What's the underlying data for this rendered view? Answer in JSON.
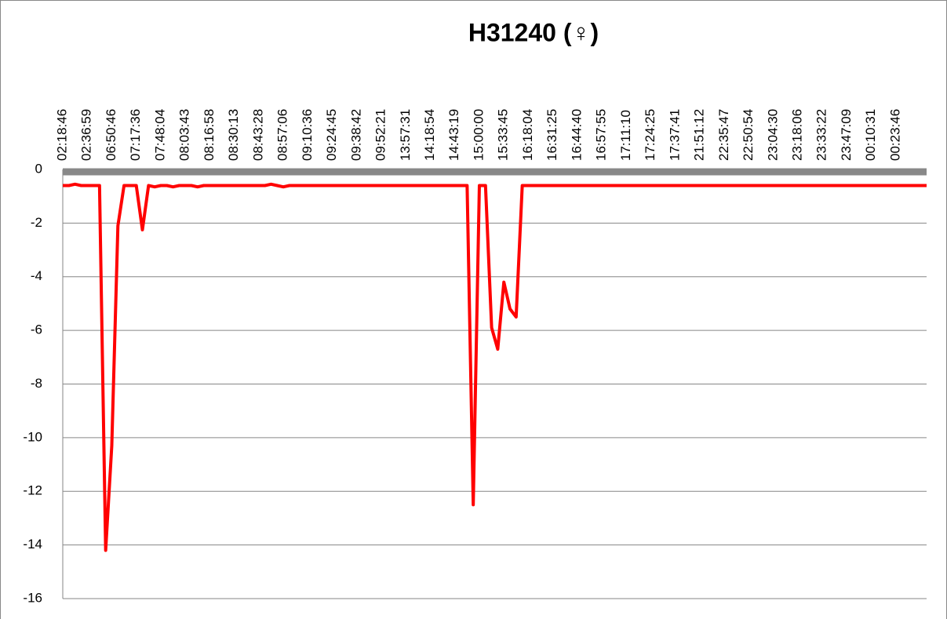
{
  "chart_data": {
    "type": "line",
    "title": "H31240 (♀)",
    "categories": [
      "02:18:46",
      null,
      null,
      null,
      "02:36:59",
      null,
      null,
      null,
      "06:50:46",
      null,
      null,
      null,
      "07:17:36",
      null,
      null,
      null,
      "07:48:04",
      null,
      null,
      null,
      "08:03:43",
      null,
      null,
      null,
      "08:16:58",
      null,
      null,
      null,
      "08:30:13",
      null,
      null,
      null,
      "08:43:28",
      null,
      null,
      null,
      "08:57:06",
      null,
      null,
      null,
      "09:10:36",
      null,
      null,
      null,
      "09:24:45",
      null,
      null,
      null,
      "09:38:42",
      null,
      null,
      null,
      "09:52:21",
      null,
      null,
      null,
      "13:57:31",
      null,
      null,
      null,
      "14:18:54",
      null,
      null,
      null,
      "14:43:19",
      null,
      null,
      null,
      "15:00:00",
      null,
      null,
      null,
      "15:33:45",
      null,
      null,
      null,
      "16:18:04",
      null,
      null,
      null,
      "16:31:25",
      null,
      null,
      null,
      "16:44:40",
      null,
      null,
      null,
      "16:57:55",
      null,
      null,
      null,
      "17:11:10",
      null,
      null,
      null,
      "17:24:25",
      null,
      null,
      null,
      "17:37:41",
      null,
      null,
      null,
      "21:51:12",
      null,
      null,
      null,
      "22:35:47",
      null,
      null,
      null,
      "22:50:54",
      null,
      null,
      null,
      "23:04:30",
      null,
      null,
      null,
      "23:18:06",
      null,
      null,
      null,
      "23:33:22",
      null,
      null,
      null,
      "23:47:09",
      null,
      null,
      null,
      "00:10:31",
      null,
      null,
      null,
      "00:23:46",
      null,
      null,
      null,
      null,
      null
    ],
    "values": [
      -0.6,
      -0.6,
      -0.55,
      -0.6,
      -0.6,
      -0.6,
      -0.6,
      -14.2,
      -10.3,
      -2.1,
      -0.6,
      -0.6,
      -0.6,
      -2.25,
      -0.6,
      -0.65,
      -0.6,
      -0.6,
      -0.65,
      -0.6,
      -0.6,
      -0.6,
      -0.65,
      -0.6,
      -0.6,
      -0.6,
      -0.6,
      -0.6,
      -0.6,
      -0.6,
      -0.6,
      -0.6,
      -0.6,
      -0.6,
      -0.55,
      -0.6,
      -0.65,
      -0.6,
      -0.6,
      -0.6,
      -0.6,
      -0.6,
      -0.6,
      -0.6,
      -0.6,
      -0.6,
      -0.6,
      -0.6,
      -0.6,
      -0.6,
      -0.6,
      -0.6,
      -0.6,
      -0.6,
      -0.6,
      -0.6,
      -0.6,
      -0.6,
      -0.6,
      -0.6,
      -0.6,
      -0.6,
      -0.6,
      -0.6,
      -0.6,
      -0.6,
      -0.6,
      -12.5,
      -0.6,
      -0.6,
      -5.9,
      -6.7,
      -4.2,
      -5.2,
      -5.5,
      -0.6,
      -0.6,
      -0.6,
      -0.6,
      -0.6,
      -0.6,
      -0.6,
      -0.6,
      -0.6,
      -0.6,
      -0.6,
      -0.6,
      -0.6,
      -0.6,
      -0.6,
      -0.6,
      -0.6,
      -0.6,
      -0.6,
      -0.6,
      -0.6,
      -0.6,
      -0.6,
      -0.6,
      -0.6,
      -0.6,
      -0.6,
      -0.6,
      -0.6,
      -0.6,
      -0.6,
      -0.6,
      -0.6,
      -0.6,
      -0.6,
      -0.6,
      -0.6,
      -0.6,
      -0.6,
      -0.6,
      -0.6,
      -0.6,
      -0.6,
      -0.6,
      -0.6,
      -0.6,
      -0.6,
      -0.6,
      -0.6,
      -0.6,
      -0.6,
      -0.6,
      -0.6,
      -0.6,
      -0.6,
      -0.6,
      -0.6,
      -0.6,
      -0.6,
      -0.6,
      -0.6,
      -0.6,
      -0.6,
      -0.6,
      -0.6,
      -0.6,
      -0.6
    ],
    "color": "#ff0000",
    "ylim": [
      -16,
      0
    ],
    "yticks": [
      0,
      -2,
      -4,
      -6,
      -8,
      -10,
      -12,
      -14,
      -16
    ],
    "grid": true
  }
}
